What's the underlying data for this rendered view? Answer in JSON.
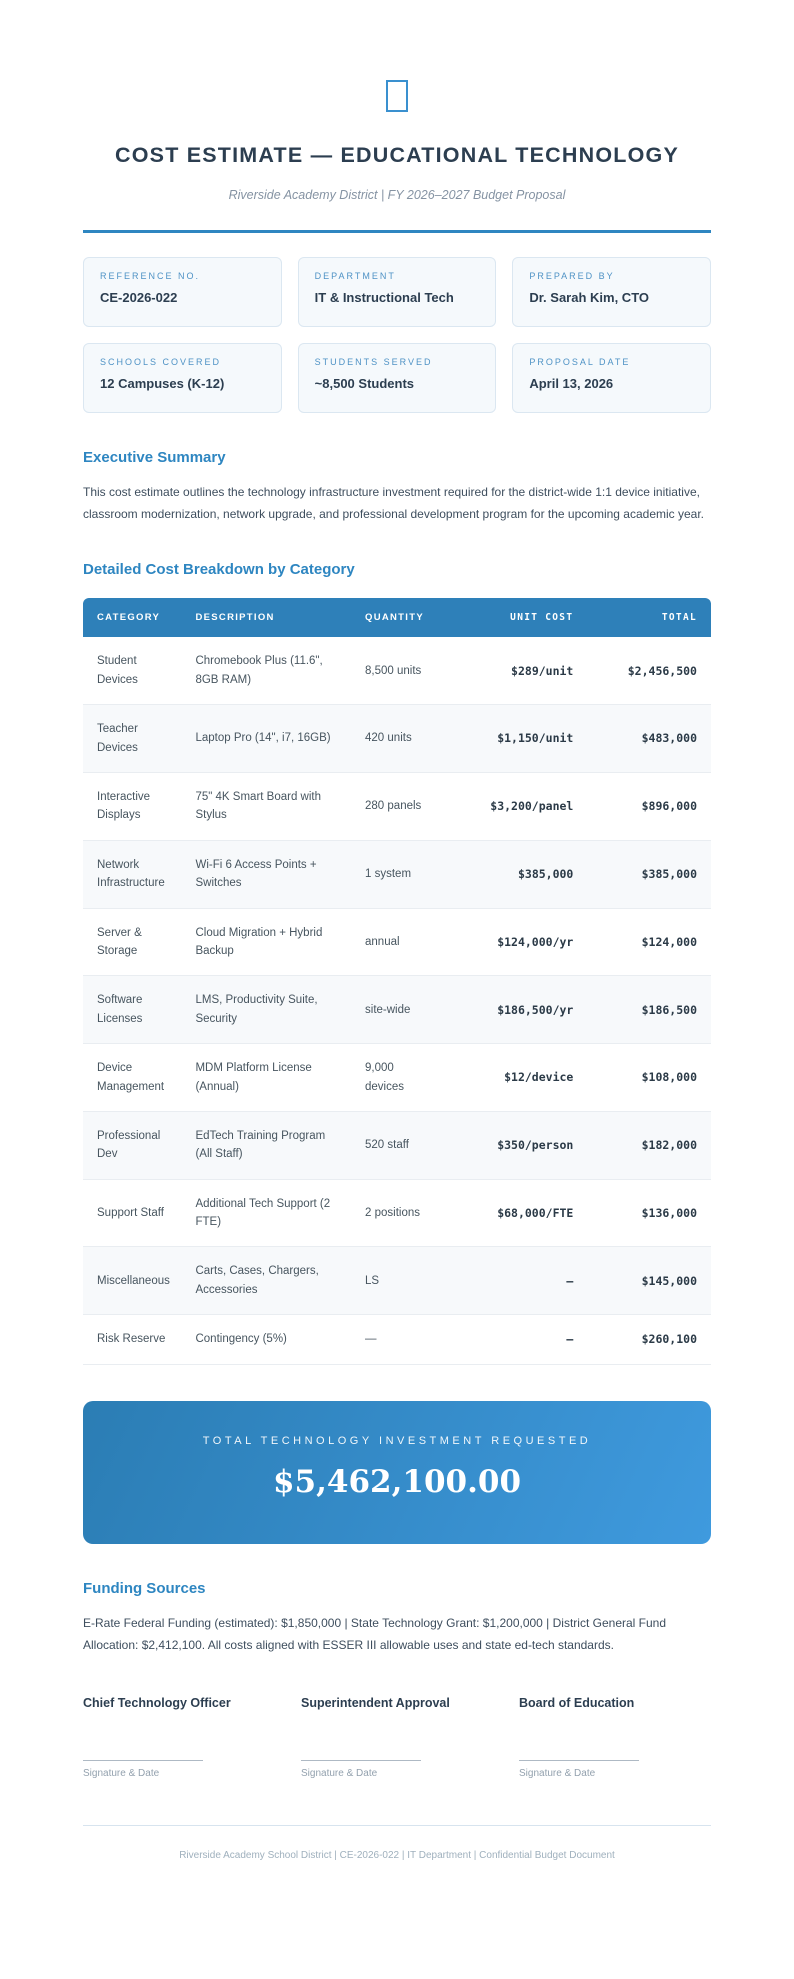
{
  "colors": {
    "accent_blue": "#2e86c1",
    "table_header_blue": "#2e80b9",
    "banner_gradient_start": "#2b7db4",
    "banner_gradient_end": "#3f9ade",
    "card_label_blue": "#4e92c5",
    "dark_navy": "#2c3e50",
    "icon_border_blue": "#3a90cf"
  },
  "header": {
    "icon": "document-glyph-icon",
    "title": "COST ESTIMATE — EDUCATIONAL TECHNOLOGY",
    "subtitle": "Riverside Academy District | FY 2026–2027 Budget Proposal"
  },
  "info_cards": [
    {
      "label": "REFERENCE NO.",
      "value": "CE-2026-022"
    },
    {
      "label": "DEPARTMENT",
      "value": "IT & Instructional Tech"
    },
    {
      "label": "PREPARED BY",
      "value": "Dr. Sarah Kim, CTO"
    },
    {
      "label": "SCHOOLS COVERED",
      "value": "12 Campuses (K-12)"
    },
    {
      "label": "STUDENTS SERVED",
      "value": "~8,500 Students"
    },
    {
      "label": "PROPOSAL DATE",
      "value": "April 13, 2026"
    }
  ],
  "executive_summary": {
    "heading": "Executive Summary",
    "body": "This cost estimate outlines the technology infrastructure investment required for the district-wide 1:1 device initiative, classroom modernization, network upgrade, and professional development program for the upcoming academic year."
  },
  "cost_table": {
    "heading": "Detailed Cost Breakdown by Category",
    "columns": [
      "CATEGORY",
      "DESCRIPTION",
      "QUANTITY",
      "UNIT COST",
      "TOTAL"
    ],
    "rows": [
      {
        "category": "Student Devices",
        "description": "Chromebook Plus (11.6\", 8GB RAM)",
        "quantity": "8,500 units",
        "unit_cost": "$289/unit",
        "total": "$2,456,500"
      },
      {
        "category": "Teacher Devices",
        "description": "Laptop Pro (14\", i7, 16GB)",
        "quantity": "420 units",
        "unit_cost": "$1,150/unit",
        "total": "$483,000"
      },
      {
        "category": "Interactive Displays",
        "description": "75\" 4K Smart Board with Stylus",
        "quantity": "280 panels",
        "unit_cost": "$3,200/panel",
        "total": "$896,000"
      },
      {
        "category": "Network Infrastructure",
        "description": "Wi-Fi 6 Access Points + Switches",
        "quantity": "1 system",
        "unit_cost": "$385,000",
        "total": "$385,000"
      },
      {
        "category": "Server & Storage",
        "description": "Cloud Migration + Hybrid Backup",
        "quantity": "annual",
        "unit_cost": "$124,000/yr",
        "total": "$124,000"
      },
      {
        "category": "Software Licenses",
        "description": "LMS, Productivity Suite, Security",
        "quantity": "site-wide",
        "unit_cost": "$186,500/yr",
        "total": "$186,500"
      },
      {
        "category": "Device Management",
        "description": "MDM Platform License (Annual)",
        "quantity": "9,000 devices",
        "unit_cost": "$12/device",
        "total": "$108,000"
      },
      {
        "category": "Professional Dev",
        "description": "EdTech Training Program (All Staff)",
        "quantity": "520 staff",
        "unit_cost": "$350/person",
        "total": "$182,000"
      },
      {
        "category": "Support Staff",
        "description": "Additional Tech Support (2 FTE)",
        "quantity": "2 positions",
        "unit_cost": "$68,000/FTE",
        "total": "$136,000"
      },
      {
        "category": "Miscellaneous",
        "description": "Carts, Cases, Chargers, Accessories",
        "quantity": "LS",
        "unit_cost": "–",
        "total": "$145,000"
      },
      {
        "category": "Risk Reserve",
        "description": "Contingency (5%)",
        "quantity": "—",
        "unit_cost": "–",
        "total": "$260,100"
      }
    ]
  },
  "total_banner": {
    "label": "TOTAL TECHNOLOGY INVESTMENT REQUESTED",
    "amount": "$5,462,100.00"
  },
  "funding": {
    "heading": "Funding Sources",
    "body": "E-Rate Federal Funding (estimated): $1,850,000 | State Technology Grant: $1,200,000 | District General Fund Allocation: $2,412,100. All costs aligned with ESSER III allowable uses and state ed-tech standards."
  },
  "signatures": [
    {
      "title": "Chief Technology Officer",
      "caption": "Signature & Date"
    },
    {
      "title": "Superintendent Approval",
      "caption": "Signature & Date"
    },
    {
      "title": "Board of Education",
      "caption": "Signature & Date"
    }
  ],
  "footer": {
    "text": "Riverside Academy School District | CE-2026-022 | IT Department | Confidential Budget Document"
  }
}
